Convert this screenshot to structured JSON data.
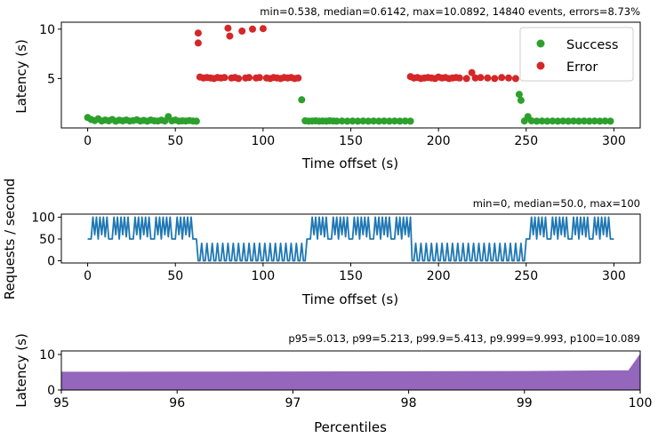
{
  "chart_data": [
    {
      "type": "scatter",
      "annotation": "min=0.538, median=0.6142, max=10.0892, 14840 events, errors=8.73%",
      "xlabel": "Time offset (s)",
      "ylabel": "Latency (s)",
      "xlim": [
        -15,
        315
      ],
      "ylim": [
        0,
        10.7
      ],
      "xticks": [
        "0",
        "50",
        "100",
        "150",
        "200",
        "250",
        "300"
      ],
      "yticks": [
        "5",
        "10"
      ],
      "legend_position": "top-right",
      "colors": {
        "Success": "#2ca02c",
        "Error": "#d62728"
      },
      "series": [
        {
          "name": "Success",
          "points": [
            [
              0,
              1.05
            ],
            [
              2,
              0.85
            ],
            [
              4,
              0.75
            ],
            [
              6,
              0.92
            ],
            [
              8,
              0.7
            ],
            [
              10,
              0.8
            ],
            [
              12,
              0.72
            ],
            [
              14,
              0.85
            ],
            [
              16,
              0.68
            ],
            [
              18,
              0.78
            ],
            [
              20,
              0.72
            ],
            [
              22,
              0.8
            ],
            [
              24,
              0.7
            ],
            [
              26,
              0.75
            ],
            [
              28,
              0.82
            ],
            [
              30,
              0.7
            ],
            [
              32,
              0.76
            ],
            [
              34,
              0.68
            ],
            [
              36,
              0.8
            ],
            [
              38,
              0.72
            ],
            [
              40,
              0.7
            ],
            [
              42,
              0.78
            ],
            [
              44,
              0.7
            ],
            [
              46,
              1.15
            ],
            [
              48,
              0.72
            ],
            [
              50,
              0.8
            ],
            [
              52,
              0.68
            ],
            [
              54,
              0.72
            ],
            [
              56,
              0.7
            ],
            [
              58,
              0.75
            ],
            [
              60,
              0.7
            ],
            [
              62,
              0.68
            ],
            [
              122,
              2.85
            ],
            [
              124,
              0.72
            ],
            [
              126,
              0.68
            ],
            [
              128,
              0.7
            ],
            [
              130,
              0.72
            ],
            [
              132,
              0.68
            ],
            [
              134,
              0.7
            ],
            [
              136,
              0.68
            ],
            [
              138,
              0.72
            ],
            [
              140,
              0.7
            ],
            [
              142,
              0.68
            ],
            [
              145,
              0.7
            ],
            [
              148,
              0.68
            ],
            [
              151,
              0.7
            ],
            [
              154,
              0.68
            ],
            [
              157,
              0.7
            ],
            [
              160,
              0.68
            ],
            [
              163,
              0.7
            ],
            [
              166,
              0.68
            ],
            [
              169,
              0.7
            ],
            [
              172,
              0.68
            ],
            [
              175,
              0.7
            ],
            [
              178,
              0.68
            ],
            [
              181,
              0.7
            ],
            [
              184,
              0.68
            ],
            [
              246,
              3.4
            ],
            [
              247,
              2.8
            ],
            [
              249,
              0.7
            ],
            [
              251,
              1.15
            ],
            [
              253,
              0.72
            ],
            [
              256,
              0.68
            ],
            [
              259,
              0.7
            ],
            [
              262,
              0.68
            ],
            [
              265,
              0.7
            ],
            [
              268,
              0.68
            ],
            [
              271,
              0.7
            ],
            [
              274,
              0.68
            ],
            [
              277,
              0.7
            ],
            [
              280,
              0.68
            ],
            [
              283,
              0.7
            ],
            [
              286,
              0.68
            ],
            [
              289,
              0.7
            ],
            [
              292,
              0.68
            ],
            [
              295,
              0.7
            ],
            [
              298,
              0.68
            ]
          ]
        },
        {
          "name": "Error",
          "points": [
            [
              63,
              9.6
            ],
            [
              63,
              8.6
            ],
            [
              64,
              5.15
            ],
            [
              66,
              5.05
            ],
            [
              68,
              5.1
            ],
            [
              70,
              5.05
            ],
            [
              72,
              5.0
            ],
            [
              74,
              5.1
            ],
            [
              76,
              5.05
            ],
            [
              78,
              5.1
            ],
            [
              80,
              10.1
            ],
            [
              81,
              9.3
            ],
            [
              82,
              5.05
            ],
            [
              84,
              5.1
            ],
            [
              86,
              5.0
            ],
            [
              88,
              9.8
            ],
            [
              90,
              5.05
            ],
            [
              92,
              5.1
            ],
            [
              94,
              10.0
            ],
            [
              96,
              5.05
            ],
            [
              98,
              5.1
            ],
            [
              100,
              10.05
            ],
            [
              102,
              5.05
            ],
            [
              104,
              5.0
            ],
            [
              106,
              5.1
            ],
            [
              108,
              5.05
            ],
            [
              110,
              5.0
            ],
            [
              112,
              5.1
            ],
            [
              114,
              5.05
            ],
            [
              116,
              5.1
            ],
            [
              118,
              5.0
            ],
            [
              120,
              5.05
            ],
            [
              184,
              5.2
            ],
            [
              186,
              5.05
            ],
            [
              188,
              5.1
            ],
            [
              190,
              5.0
            ],
            [
              192,
              5.05
            ],
            [
              194,
              5.1
            ],
            [
              196,
              5.05
            ],
            [
              198,
              5.0
            ],
            [
              200,
              5.15
            ],
            [
              202,
              5.05
            ],
            [
              204,
              5.1
            ],
            [
              206,
              5.0
            ],
            [
              208,
              5.05
            ],
            [
              210,
              5.1
            ],
            [
              212,
              5.05
            ],
            [
              216,
              5.0
            ],
            [
              219,
              5.6
            ],
            [
              221,
              5.05
            ],
            [
              224,
              5.1
            ],
            [
              228,
              5.05
            ],
            [
              232,
              5.0
            ],
            [
              236,
              5.1
            ],
            [
              240,
              5.05
            ],
            [
              244,
              5.0
            ]
          ]
        }
      ]
    },
    {
      "type": "line",
      "annotation": "min=0, median=50.0, max=100",
      "xlabel": "Time offset (s)",
      "ylabel": "Requests / second",
      "xlim": [
        -15,
        315
      ],
      "ylim": [
        -5,
        107
      ],
      "xticks": [
        "0",
        "50",
        "100",
        "150",
        "200",
        "250",
        "300"
      ],
      "yticks": [
        "0",
        "50",
        "100"
      ],
      "color": "#1f77b4",
      "segments": [
        {
          "start": 0,
          "end": 62,
          "pattern": "high"
        },
        {
          "start": 63,
          "end": 124,
          "pattern": "low"
        },
        {
          "start": 125,
          "end": 184,
          "pattern": "high"
        },
        {
          "start": 185,
          "end": 249,
          "pattern": "low"
        },
        {
          "start": 250,
          "end": 300,
          "pattern": "high"
        }
      ],
      "patterns": {
        "high": [
          50,
          50,
          50,
          100,
          60,
          100,
          50,
          100,
          60,
          100,
          55,
          100
        ],
        "low": [
          0,
          0,
          40,
          0,
          0,
          40,
          0,
          0,
          40,
          0,
          0,
          40
        ]
      }
    },
    {
      "type": "area",
      "annotation": "p95=5.013, p99=5.213, p99.9=5.413, p9.999=9.993, p100=10.089",
      "xlabel": "Percentiles",
      "ylabel": "Latency (s)",
      "xlim": [
        95,
        100
      ],
      "ylim": [
        0,
        11
      ],
      "xticks": [
        "95",
        "96",
        "97",
        "98",
        "99",
        "100"
      ],
      "yticks": [
        "0",
        "10"
      ],
      "color": "#9467bd",
      "x": [
        95,
        96,
        97,
        98,
        99,
        99.9,
        99.999,
        100
      ],
      "y": [
        5.013,
        5.05,
        5.1,
        5.15,
        5.213,
        5.413,
        9.993,
        10.089
      ]
    }
  ]
}
